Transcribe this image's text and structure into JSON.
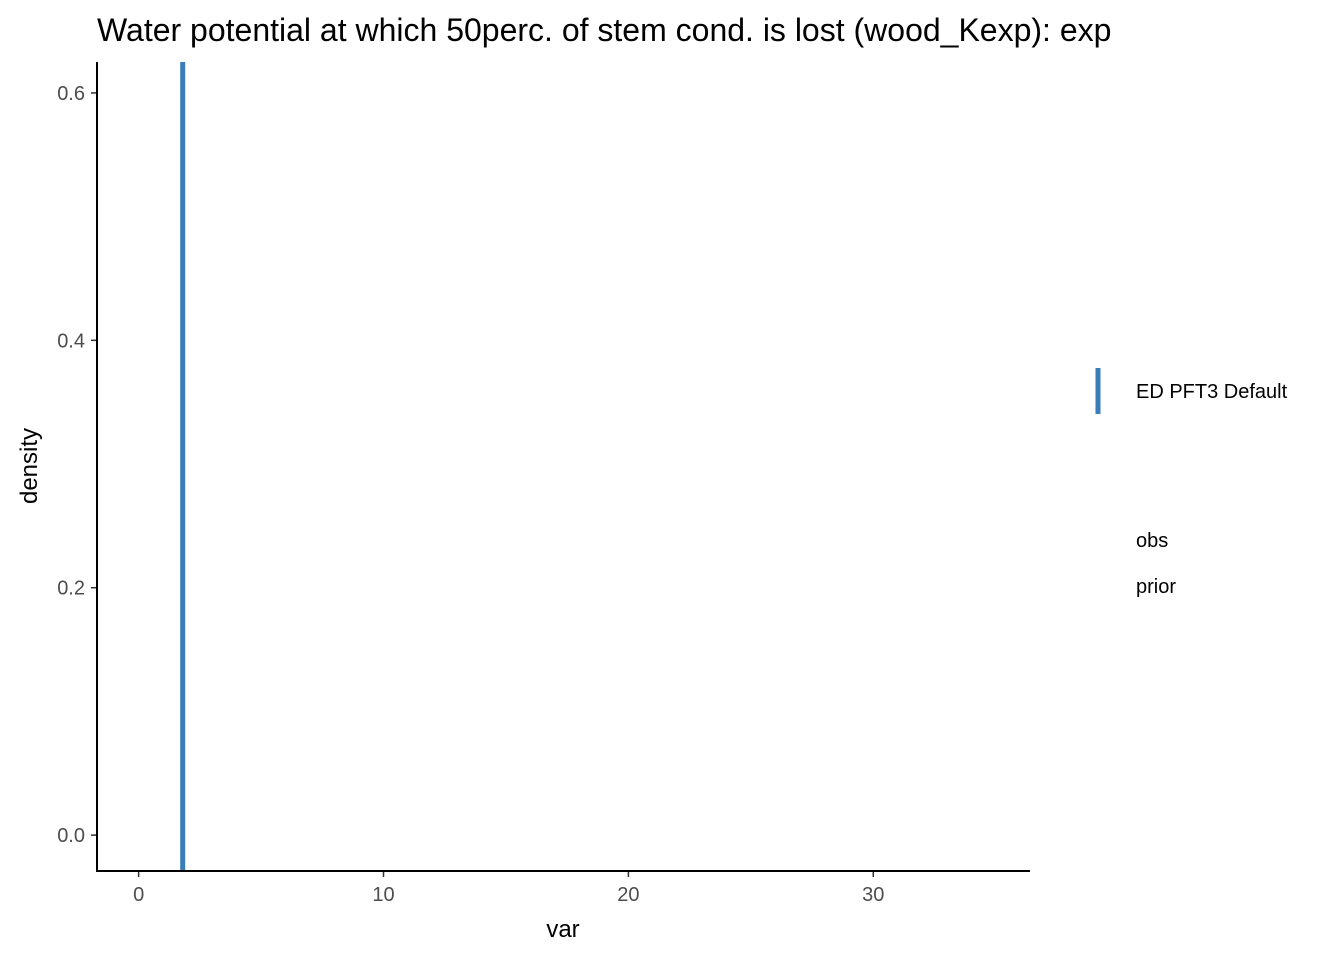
{
  "chart_data": {
    "type": "line",
    "title": "Water potential at which 50perc. of stem cond. is lost (wood_Kexp): exp",
    "xlabel": "var",
    "ylabel": "density",
    "xlim": [
      -1.7,
      36.4
    ],
    "ylim": [
      -0.029,
      0.625
    ],
    "x_ticks": [
      {
        "value": 0,
        "label": "0"
      },
      {
        "value": 10,
        "label": "10"
      },
      {
        "value": 20,
        "label": "20"
      },
      {
        "value": 30,
        "label": "30"
      }
    ],
    "y_ticks": [
      {
        "value": 0.0,
        "label": "0.0"
      },
      {
        "value": 0.2,
        "label": "0.2"
      },
      {
        "value": 0.4,
        "label": "0.4"
      },
      {
        "value": 0.6,
        "label": "0.6"
      }
    ],
    "vlines": [
      {
        "name": "ED PFT3 Default",
        "x": 1.8,
        "color": "#3a7dba"
      }
    ],
    "legend": {
      "placement": "right",
      "entries": [
        {
          "label": "ED PFT3 Default",
          "color": "#3a7dba",
          "marker": "vline"
        },
        {
          "label": "obs",
          "color": "",
          "marker": "none"
        },
        {
          "label": "prior",
          "color": "",
          "marker": "none"
        }
      ]
    },
    "grid": false
  }
}
